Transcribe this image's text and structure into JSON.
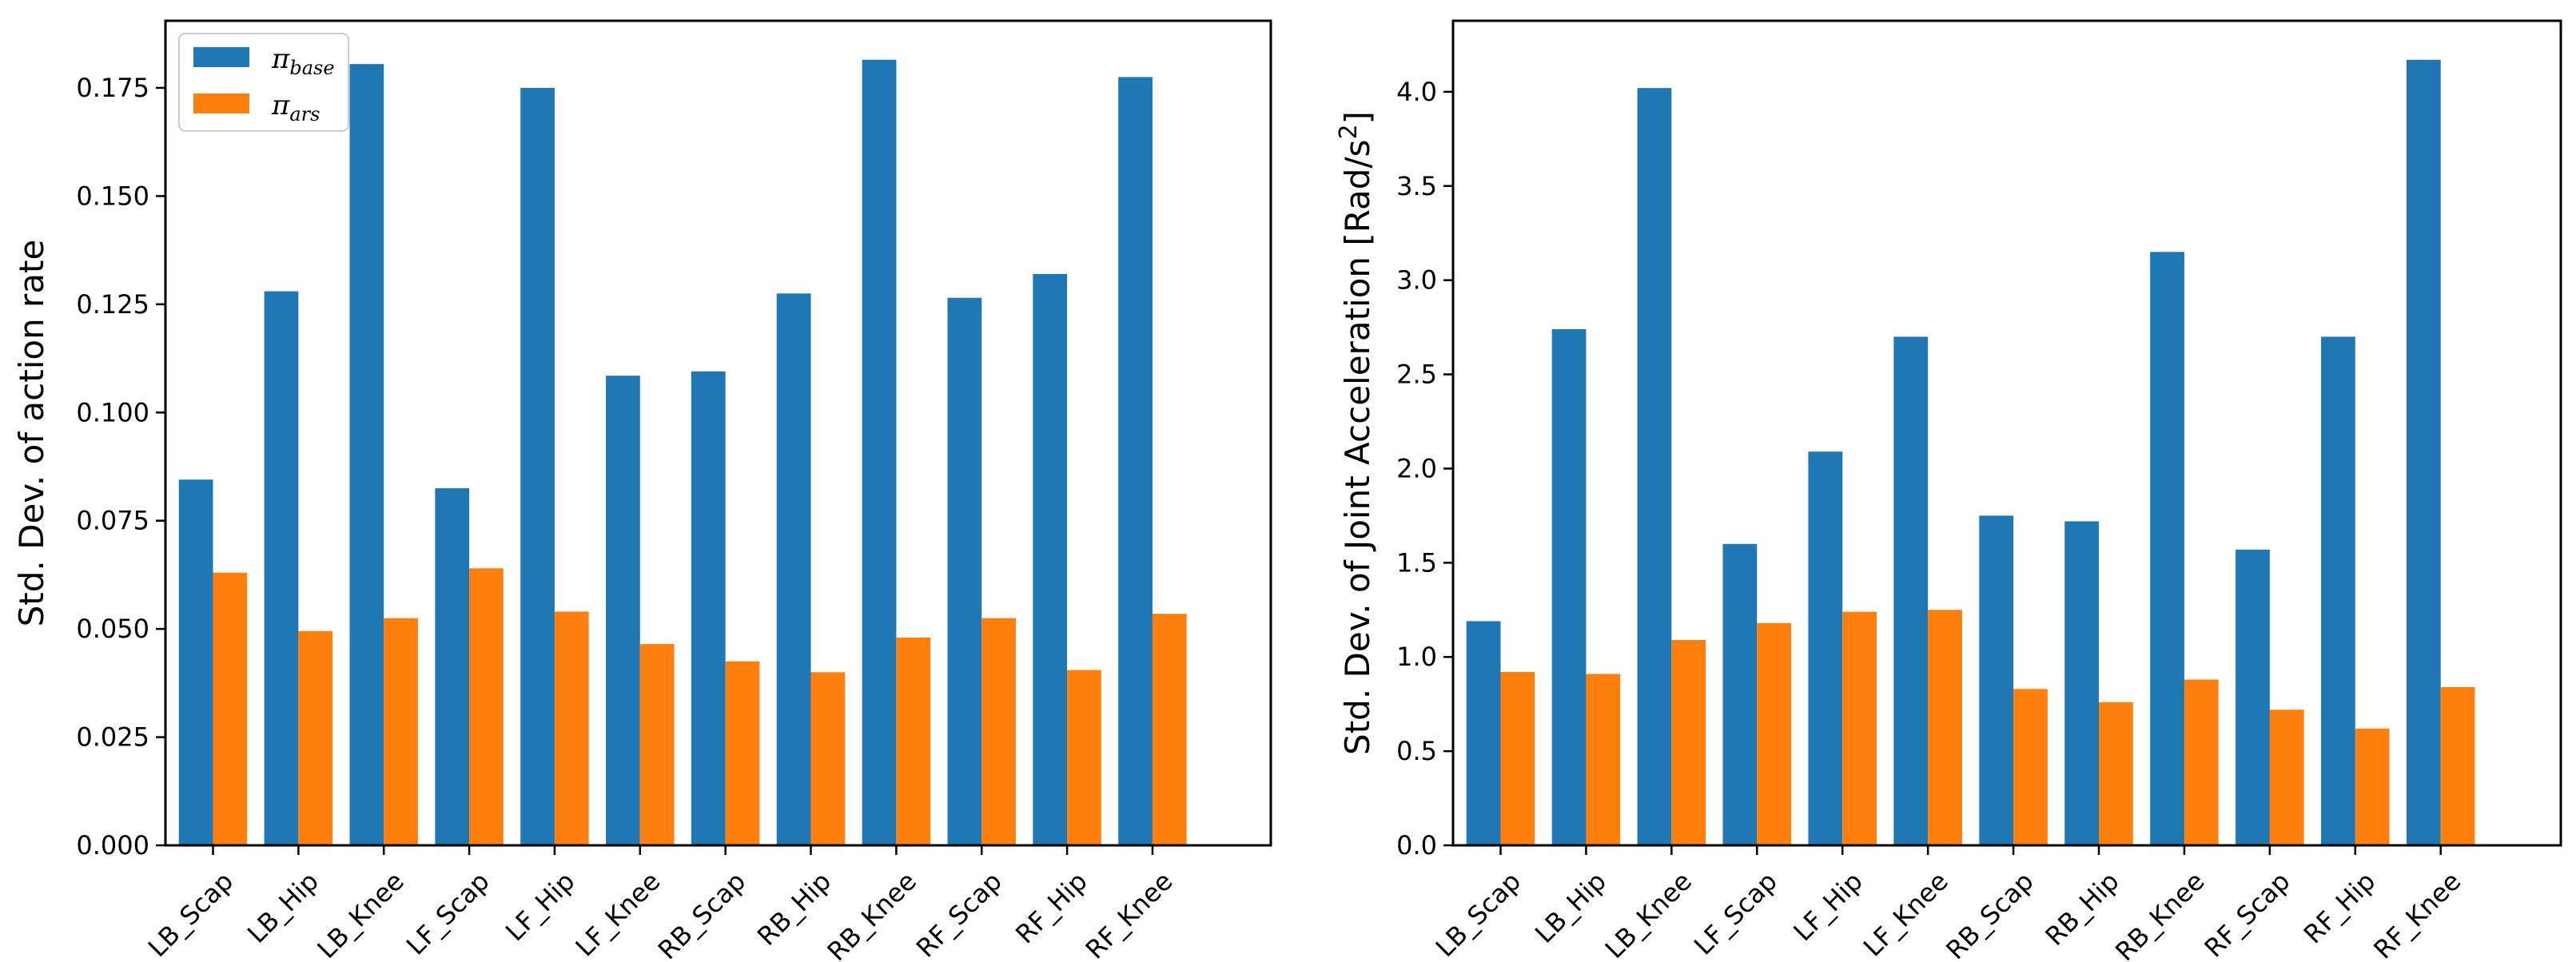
{
  "chart_data": [
    {
      "type": "bar",
      "categories": [
        "LB_Scap",
        "LB_Hip",
        "LB_Knee",
        "LF_Scap",
        "LF_Hip",
        "LF_Knee",
        "RB_Scap",
        "RB_Hip",
        "RB_Knee",
        "RF_Scap",
        "RF_Hip",
        "RF_Knee"
      ],
      "series": [
        {
          "name": "π_base",
          "symbol": "π",
          "subscript": "base",
          "color": "#1f77b4",
          "values": [
            0.0845,
            0.128,
            0.1805,
            0.0825,
            0.175,
            0.1085,
            0.1095,
            0.1275,
            0.1815,
            0.1265,
            0.132,
            0.1775
          ]
        },
        {
          "name": "π_ars",
          "symbol": "π",
          "subscript": "ars",
          "color": "#ff7f0e",
          "values": [
            0.063,
            0.0495,
            0.0525,
            0.064,
            0.054,
            0.0465,
            0.0425,
            0.04,
            0.048,
            0.0525,
            0.0405,
            0.0535
          ]
        }
      ],
      "ylabel": "Std. Dev. of action rate",
      "xlabel": "",
      "ylim": [
        0,
        0.1905
      ],
      "yticks": [
        0,
        0.025,
        0.05,
        0.075,
        0.1,
        0.125,
        0.15,
        0.175
      ],
      "ytick_labels": [
        "0.000",
        "0.025",
        "0.050",
        "0.075",
        "0.100",
        "0.125",
        "0.150",
        "0.175"
      ],
      "legend": "top-left"
    },
    {
      "type": "bar",
      "categories": [
        "LB_Scap",
        "LB_Hip",
        "LB_Knee",
        "LF_Scap",
        "LF_Hip",
        "LF_Knee",
        "RB_Scap",
        "RB_Hip",
        "RB_Knee",
        "RF_Scap",
        "RF_Hip",
        "RF_Knee"
      ],
      "series": [
        {
          "name": "π_base",
          "color": "#1f77b4",
          "values": [
            1.19,
            2.74,
            4.02,
            1.6,
            2.09,
            2.7,
            1.75,
            1.72,
            3.15,
            1.57,
            2.7,
            4.17
          ]
        },
        {
          "name": "π_ars",
          "color": "#ff7f0e",
          "values": [
            0.92,
            0.91,
            1.09,
            1.18,
            1.24,
            1.25,
            0.83,
            0.76,
            0.88,
            0.72,
            0.62,
            0.84
          ]
        }
      ],
      "ylabel": "Std. Dev. of Joint Acceleration [Rad/s",
      "ylabel_superscript": "2",
      "ylabel_suffix": "]",
      "xlabel": "",
      "ylim": [
        0,
        4.377
      ],
      "yticks": [
        0,
        0.5,
        1.0,
        1.5,
        2.0,
        2.5,
        3.0,
        3.5,
        4.0
      ],
      "ytick_labels": [
        "0.0",
        "0.5",
        "1.0",
        "1.5",
        "2.0",
        "2.5",
        "3.0",
        "3.5",
        "4.0"
      ],
      "legend": "none"
    }
  ]
}
